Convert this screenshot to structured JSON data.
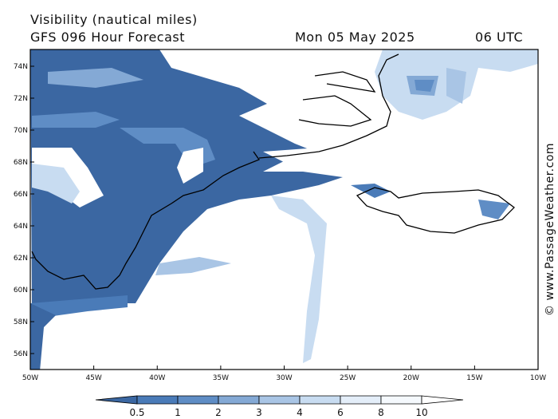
{
  "header": {
    "title": "Visibility (nautical miles)",
    "subtitle": "GFS 096 Hour Forecast",
    "date": "Mon 05 May 2025",
    "time": "06 UTC"
  },
  "watermark": "© www.PassageWeather.com",
  "map": {
    "lat_ticks": [
      "74N",
      "72N",
      "70N",
      "68N",
      "66N",
      "64N",
      "62N",
      "60N",
      "58N",
      "56N"
    ],
    "lon_ticks": [
      "50W",
      "45W",
      "40W",
      "35W",
      "30W",
      "25W",
      "20W",
      "15W",
      "10W"
    ]
  },
  "colorbar": {
    "labels": [
      0.5,
      1,
      2,
      3,
      4,
      6,
      8,
      10
    ],
    "colors": [
      "#3b67a2",
      "#4a7bb8",
      "#5f8dc5",
      "#84a9d5",
      "#a9c5e5",
      "#c8dcf1",
      "#e4eef9",
      "#f5f9fd",
      "#ffffff"
    ]
  }
}
